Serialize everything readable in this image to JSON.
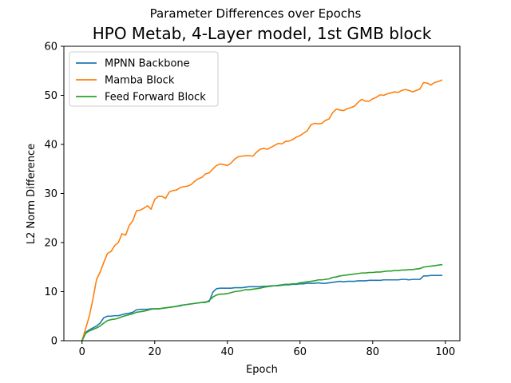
{
  "chart_data": {
    "type": "line",
    "suptitle": "Parameter Differences over Epochs",
    "title": "HPO Metab, 4-Layer model, 1st GMB block",
    "xlabel": "Epoch",
    "ylabel": "L2 Norm Difference",
    "xlim": [
      -5,
      104
    ],
    "ylim": [
      0,
      60
    ],
    "xticks": [
      0,
      20,
      40,
      60,
      80,
      100
    ],
    "yticks": [
      0,
      10,
      20,
      30,
      40,
      50,
      60
    ],
    "grid": false,
    "legend_position": "upper-left",
    "series": [
      {
        "name": "MPNN Backbone",
        "color": "#1f77b4",
        "x": [
          0,
          1,
          2,
          3,
          4,
          5,
          6,
          7,
          8,
          9,
          10,
          11,
          12,
          13,
          14,
          15,
          16,
          17,
          18,
          19,
          20,
          21,
          22,
          23,
          24,
          25,
          26,
          27,
          28,
          29,
          30,
          31,
          32,
          33,
          34,
          35,
          36,
          37,
          38,
          39,
          40,
          41,
          42,
          43,
          44,
          45,
          46,
          47,
          48,
          49,
          50,
          51,
          52,
          53,
          54,
          55,
          56,
          57,
          58,
          59,
          60,
          61,
          62,
          63,
          64,
          65,
          66,
          67,
          68,
          69,
          70,
          71,
          72,
          73,
          74,
          75,
          76,
          77,
          78,
          79,
          80,
          81,
          82,
          83,
          84,
          85,
          86,
          87,
          88,
          89,
          90,
          91,
          92,
          93,
          94,
          95,
          96,
          97,
          98,
          99
        ],
        "values": [
          0,
          1.7,
          2.2,
          2.6,
          3.0,
          3.6,
          4.7,
          5.0,
          5.0,
          5.1,
          5.1,
          5.3,
          5.5,
          5.6,
          5.8,
          6.3,
          6.4,
          6.4,
          6.4,
          6.5,
          6.5,
          6.5,
          6.6,
          6.7,
          6.8,
          6.9,
          7.0,
          7.1,
          7.3,
          7.4,
          7.5,
          7.6,
          7.7,
          7.8,
          7.9,
          8.0,
          9.9,
          10.6,
          10.7,
          10.7,
          10.7,
          10.7,
          10.8,
          10.8,
          10.8,
          10.9,
          11.0,
          11.0,
          11.0,
          11.0,
          11.1,
          11.1,
          11.2,
          11.2,
          11.2,
          11.3,
          11.4,
          11.4,
          11.5,
          11.5,
          11.6,
          11.6,
          11.7,
          11.7,
          11.7,
          11.8,
          11.7,
          11.7,
          11.8,
          11.9,
          12.0,
          12.1,
          12.0,
          12.1,
          12.1,
          12.1,
          12.2,
          12.2,
          12.2,
          12.3,
          12.3,
          12.3,
          12.3,
          12.4,
          12.4,
          12.4,
          12.4,
          12.4,
          12.5,
          12.5,
          12.4,
          12.5,
          12.5,
          12.5,
          13.2,
          13.2,
          13.3,
          13.3,
          13.3,
          13.3
        ]
      },
      {
        "name": "Mamba Block",
        "color": "#ff7f0e",
        "x": [
          0,
          1,
          2,
          3,
          4,
          5,
          6,
          7,
          8,
          9,
          10,
          11,
          12,
          13,
          14,
          15,
          16,
          17,
          18,
          19,
          20,
          21,
          22,
          23,
          24,
          25,
          26,
          27,
          28,
          29,
          30,
          31,
          32,
          33,
          34,
          35,
          36,
          37,
          38,
          39,
          40,
          41,
          42,
          43,
          44,
          45,
          46,
          47,
          48,
          49,
          50,
          51,
          52,
          53,
          54,
          55,
          56,
          57,
          58,
          59,
          60,
          61,
          62,
          63,
          64,
          65,
          66,
          67,
          68,
          69,
          70,
          71,
          72,
          73,
          74,
          75,
          76,
          77,
          78,
          79,
          80,
          81,
          82,
          83,
          84,
          85,
          86,
          87,
          88,
          89,
          90,
          91,
          92,
          93,
          94,
          95,
          96,
          97,
          98,
          99
        ],
        "values": [
          0,
          2.5,
          5.0,
          8.5,
          12.5,
          14.0,
          16.0,
          17.8,
          18.2,
          19.4,
          20.0,
          21.8,
          21.5,
          23.5,
          24.5,
          26.5,
          26.6,
          27.0,
          27.5,
          26.8,
          28.8,
          29.4,
          29.4,
          29.0,
          30.3,
          30.6,
          30.7,
          31.2,
          31.4,
          31.5,
          31.8,
          32.5,
          33.0,
          33.3,
          34.0,
          34.2,
          35.0,
          35.7,
          36.0,
          35.9,
          35.7,
          36.2,
          37.0,
          37.5,
          37.6,
          37.7,
          37.7,
          37.6,
          38.4,
          39.0,
          39.2,
          39.0,
          39.4,
          39.8,
          40.2,
          40.1,
          40.6,
          40.7,
          41.0,
          41.5,
          41.8,
          42.3,
          42.8,
          44.0,
          44.3,
          44.2,
          44.3,
          44.9,
          45.2,
          46.5,
          47.2,
          47.0,
          46.9,
          47.3,
          47.5,
          47.8,
          48.6,
          49.2,
          48.8,
          48.8,
          49.3,
          49.6,
          50.1,
          50.0,
          50.3,
          50.5,
          50.7,
          50.6,
          51.0,
          51.2,
          51.0,
          50.7,
          51.0,
          51.3,
          52.6,
          52.5,
          52.1,
          52.6,
          52.8,
          53.1
        ]
      },
      {
        "name": "Feed Forward Block",
        "color": "#2ca02c",
        "x": [
          0,
          1,
          2,
          3,
          4,
          5,
          6,
          7,
          8,
          9,
          10,
          11,
          12,
          13,
          14,
          15,
          16,
          17,
          18,
          19,
          20,
          21,
          22,
          23,
          24,
          25,
          26,
          27,
          28,
          29,
          30,
          31,
          32,
          33,
          34,
          35,
          36,
          37,
          38,
          39,
          40,
          41,
          42,
          43,
          44,
          45,
          46,
          47,
          48,
          49,
          50,
          51,
          52,
          53,
          54,
          55,
          56,
          57,
          58,
          59,
          60,
          61,
          62,
          63,
          64,
          65,
          66,
          67,
          68,
          69,
          70,
          71,
          72,
          73,
          74,
          75,
          76,
          77,
          78,
          79,
          80,
          81,
          82,
          83,
          84,
          85,
          86,
          87,
          88,
          89,
          90,
          91,
          92,
          93,
          94,
          95,
          96,
          97,
          98,
          99
        ],
        "values": [
          0,
          1.5,
          2.0,
          2.3,
          2.6,
          3.0,
          3.6,
          4.1,
          4.3,
          4.4,
          4.6,
          4.9,
          5.1,
          5.3,
          5.5,
          5.8,
          5.9,
          6.0,
          6.2,
          6.4,
          6.5,
          6.5,
          6.6,
          6.7,
          6.8,
          6.9,
          7.0,
          7.2,
          7.3,
          7.4,
          7.5,
          7.6,
          7.7,
          7.8,
          7.8,
          8.2,
          8.9,
          9.3,
          9.5,
          9.5,
          9.6,
          9.8,
          10.0,
          10.1,
          10.2,
          10.4,
          10.4,
          10.5,
          10.6,
          10.7,
          10.9,
          11.0,
          11.1,
          11.2,
          11.3,
          11.4,
          11.5,
          11.5,
          11.6,
          11.6,
          11.8,
          11.9,
          12.0,
          12.1,
          12.2,
          12.4,
          12.4,
          12.5,
          12.6,
          12.9,
          13.0,
          13.2,
          13.3,
          13.4,
          13.5,
          13.6,
          13.7,
          13.8,
          13.8,
          13.9,
          13.9,
          14.0,
          14.0,
          14.1,
          14.2,
          14.2,
          14.3,
          14.3,
          14.4,
          14.4,
          14.5,
          14.5,
          14.6,
          14.7,
          15.0,
          15.1,
          15.2,
          15.3,
          15.4,
          15.5
        ]
      }
    ]
  }
}
